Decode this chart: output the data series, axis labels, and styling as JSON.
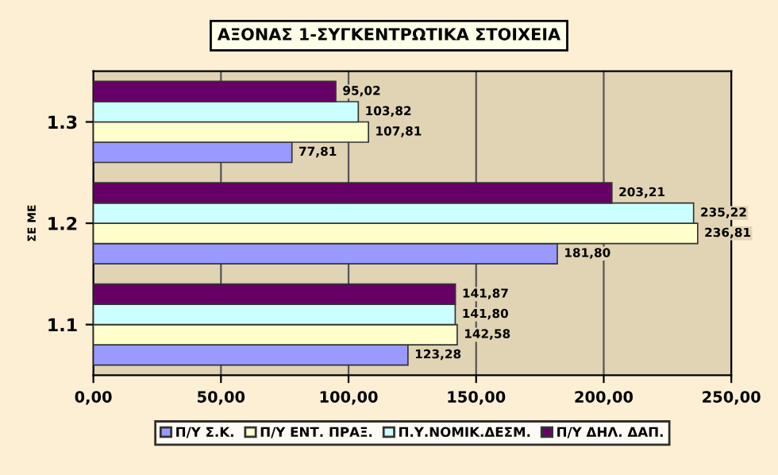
{
  "chart_data": {
    "type": "bar",
    "orientation": "horizontal",
    "title": "ΑΞΟΝΑΣ 1-ΣΥΓΚΕΝΤΡΩΤΙΚΑ ΣΤΟΙΧΕΙΑ",
    "ylabel": "ΣΕ ΜΕ",
    "categories": [
      "1.3",
      "1.2",
      "1.1"
    ],
    "series": [
      {
        "name": "Π/Υ Σ.Κ.",
        "color": "#9999ff",
        "values": [
          77.81,
          181.8,
          123.28
        ],
        "value_labels": [
          "77,81",
          "181,80",
          "123,28"
        ]
      },
      {
        "name": "Π/Υ ΕΝΤ. ΠΡΑΞ.",
        "color": "#ffffcc",
        "values": [
          107.81,
          236.81,
          142.58
        ],
        "value_labels": [
          "107,81",
          "236,81",
          "142,58"
        ]
      },
      {
        "name": "Π.Υ.ΝΟΜΙΚ.ΔΕΣΜ.",
        "color": "#ccffff",
        "values": [
          103.82,
          235.22,
          141.8
        ],
        "value_labels": [
          "103,82",
          "235,22",
          "141,80"
        ]
      },
      {
        "name": "Π/Υ ΔΗΛ. ΔΑΠ.",
        "color": "#660066",
        "values": [
          95.02,
          203.21,
          141.87
        ],
        "value_labels": [
          "95,02",
          "203,21",
          "141,87"
        ]
      }
    ],
    "xlim": [
      0,
      250
    ],
    "xticks": [
      {
        "value": 0,
        "label": "0,00"
      },
      {
        "value": 50,
        "label": "50,00"
      },
      {
        "value": 100,
        "label": "100,00"
      },
      {
        "value": 150,
        "label": "150,00"
      },
      {
        "value": 200,
        "label": "200,00"
      },
      {
        "value": 250,
        "label": "250,00"
      }
    ],
    "grid": "x",
    "legend": "bottom"
  }
}
